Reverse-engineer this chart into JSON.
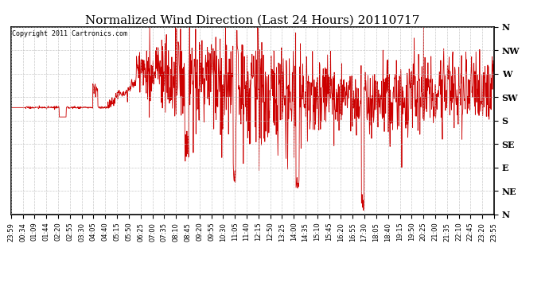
{
  "title": "Normalized Wind Direction (Last 24 Hours) 20110717",
  "copyright_text": "Copyright 2011 Cartronics.com",
  "line_color": "#cc0000",
  "background_color": "#ffffff",
  "grid_color": "#bbbbbb",
  "ytick_labels": [
    "N",
    "NW",
    "W",
    "SW",
    "S",
    "SE",
    "E",
    "NE",
    "N"
  ],
  "ytick_values": [
    1.0,
    0.875,
    0.75,
    0.625,
    0.5,
    0.375,
    0.25,
    0.125,
    0.0
  ],
  "xtick_labels": [
    "23:59",
    "00:34",
    "01:09",
    "01:44",
    "02:20",
    "02:55",
    "03:30",
    "04:05",
    "04:40",
    "05:15",
    "05:50",
    "06:25",
    "07:00",
    "07:35",
    "08:10",
    "08:45",
    "09:20",
    "09:55",
    "10:30",
    "11:05",
    "11:40",
    "12:15",
    "12:50",
    "13:25",
    "14:00",
    "14:35",
    "15:10",
    "15:45",
    "16:20",
    "16:55",
    "17:30",
    "18:05",
    "18:40",
    "19:15",
    "19:50",
    "20:25",
    "21:00",
    "21:35",
    "22:10",
    "22:45",
    "23:20",
    "23:55"
  ],
  "figsize": [
    6.9,
    3.75
  ],
  "dpi": 100,
  "title_fontsize": 11,
  "tick_fontsize": 6,
  "copyright_fontsize": 6,
  "line_width": 0.6
}
